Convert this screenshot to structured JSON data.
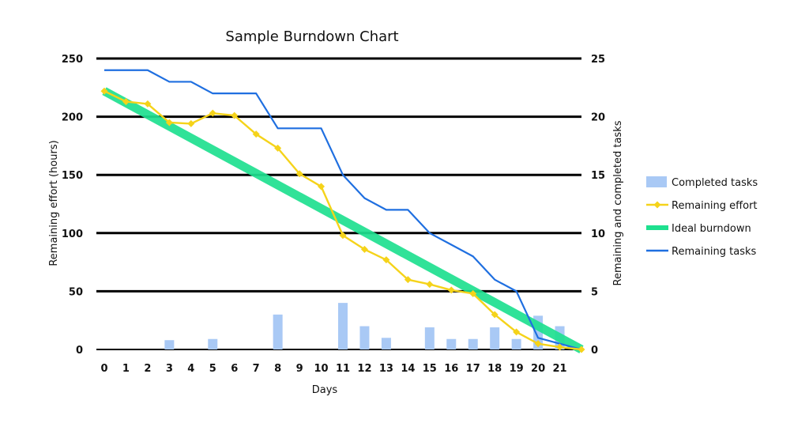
{
  "chart_data": {
    "type": "bar+line",
    "title": "Sample Burndown Chart",
    "xlabel": "Days",
    "ylabel_left": "Remaining effort (hours)",
    "ylabel_right": "Remaining and completed tasks",
    "x": [
      0,
      1,
      2,
      3,
      4,
      5,
      6,
      7,
      8,
      9,
      10,
      11,
      12,
      13,
      14,
      15,
      16,
      17,
      18,
      19,
      20,
      21,
      22
    ],
    "x_tick_labels": [
      "0",
      "1",
      "2",
      "3",
      "4",
      "5",
      "6",
      "7",
      "8",
      "9",
      "10",
      "11",
      "12",
      "13",
      "14",
      "15",
      "16",
      "17",
      "18",
      "19",
      "20",
      "21"
    ],
    "ylim_left": [
      0,
      250
    ],
    "yticks_left": [
      "0",
      "50",
      "100",
      "150",
      "200",
      "250"
    ],
    "ylim_right": [
      0,
      25
    ],
    "yticks_right": [
      "0",
      "5",
      "10",
      "15",
      "20",
      "25"
    ],
    "grid": true,
    "legend_position": "right",
    "series": [
      {
        "name": "Completed tasks",
        "kind": "bar",
        "axis": "right",
        "color": "#a9c9f5",
        "values": [
          0,
          0,
          0,
          0.8,
          0,
          0.9,
          0,
          0,
          3,
          0,
          0,
          4,
          2,
          1,
          0,
          1.9,
          0.9,
          0.9,
          1.9,
          0.9,
          2.9,
          2,
          0
        ]
      },
      {
        "name": "Remaining effort",
        "kind": "line",
        "axis": "left",
        "color": "#f5d31a",
        "values": [
          222,
          213,
          211,
          195,
          194,
          203,
          201,
          185,
          173,
          151,
          140,
          98,
          86,
          77,
          60,
          56,
          51,
          48,
          30,
          15,
          5,
          2,
          0
        ]
      },
      {
        "name": "Ideal burndown",
        "kind": "line",
        "axis": "left",
        "color": "#1ee08f",
        "values": [
          222,
          0
        ],
        "x": [
          0,
          22
        ]
      },
      {
        "name": "Remaining tasks",
        "kind": "line",
        "axis": "right",
        "color": "#1f6fe0",
        "values": [
          24,
          24,
          24,
          23,
          23,
          22,
          22,
          22,
          19,
          19,
          19,
          15,
          13,
          12,
          12,
          10,
          9,
          8,
          6,
          5,
          1,
          0.5,
          0
        ]
      }
    ]
  }
}
